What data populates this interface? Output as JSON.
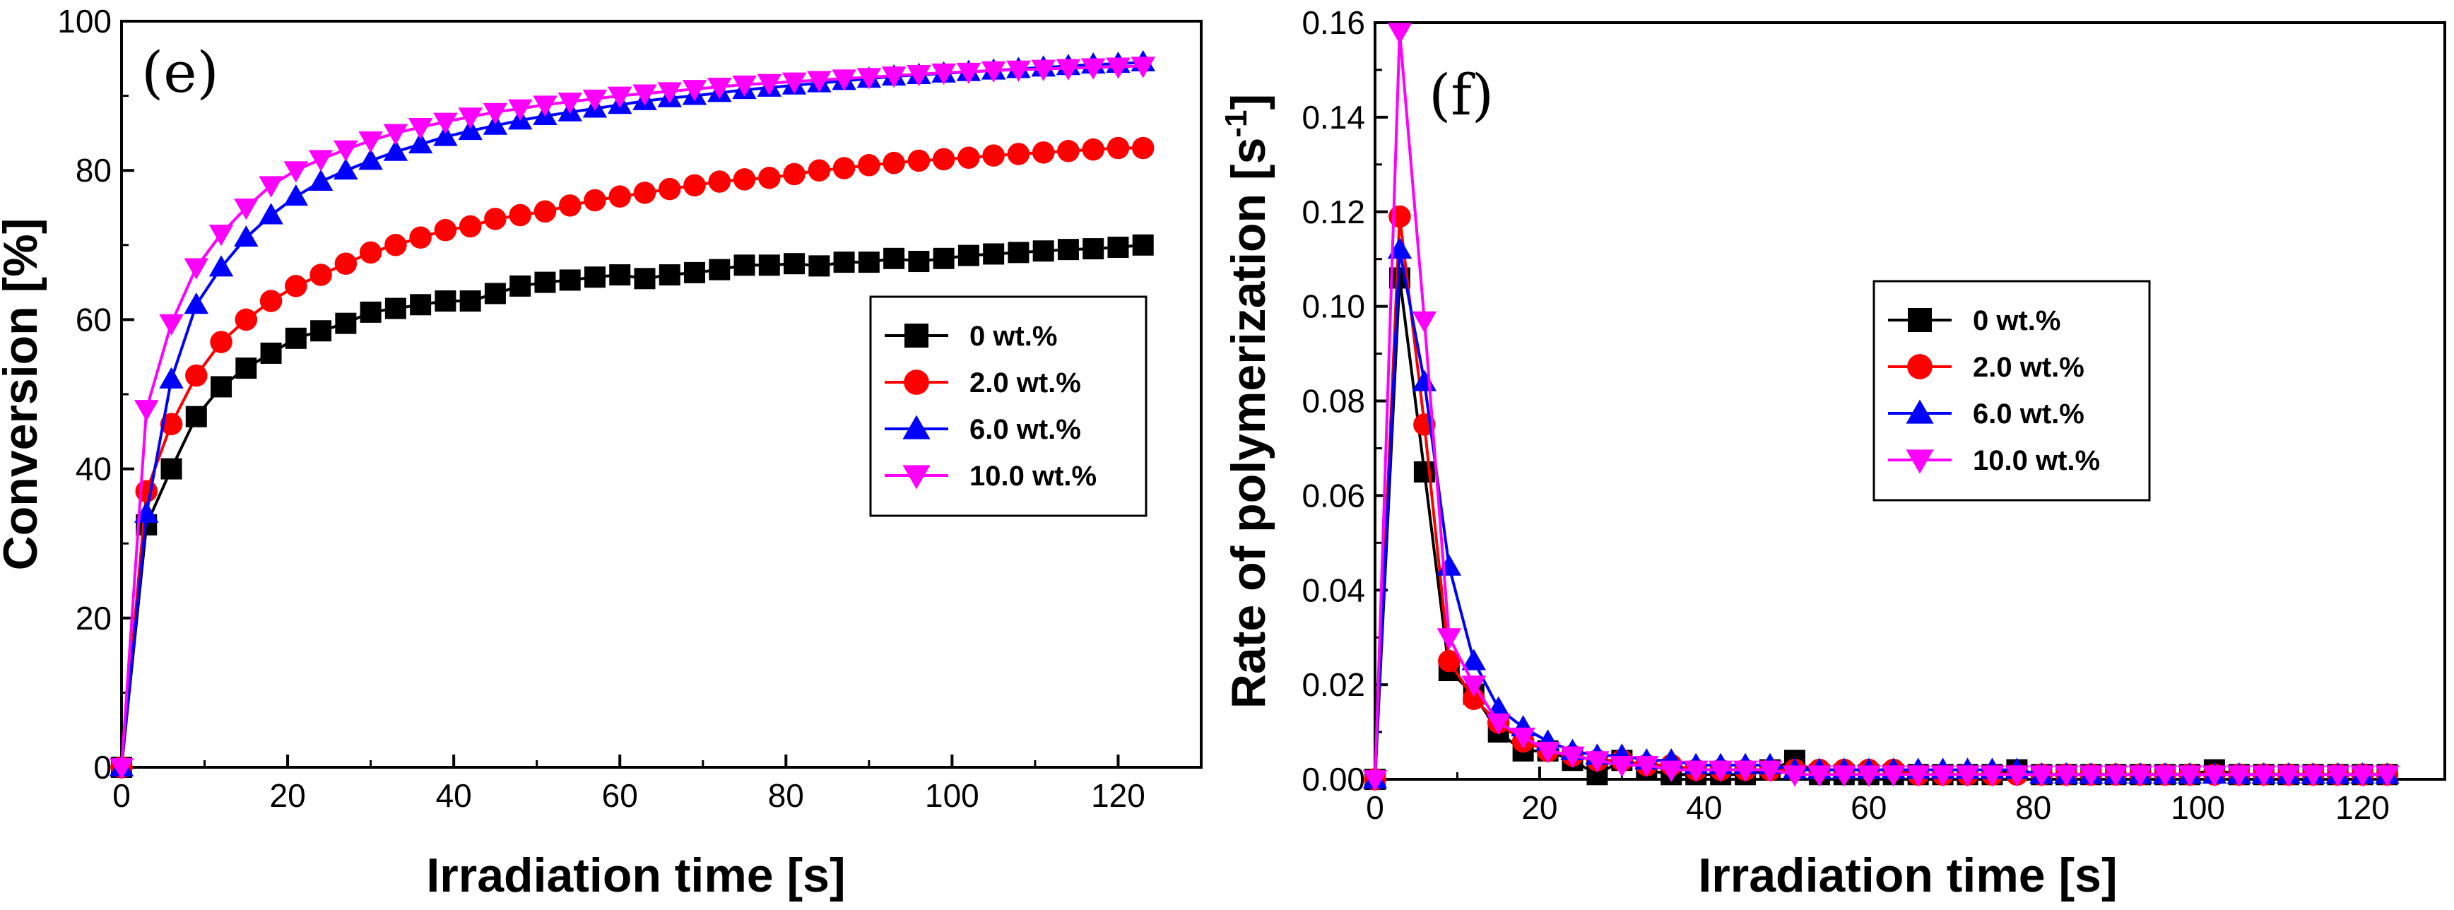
{
  "chart_data": [
    {
      "type": "line",
      "panel_label": "(e)",
      "xlabel": "Irradiation time  [s]",
      "ylabel": "Conversion  [%]",
      "xlim": [
        0,
        130
      ],
      "ylim": [
        0,
        100
      ],
      "xticks": [
        0,
        20,
        40,
        60,
        80,
        100,
        120
      ],
      "yticks": [
        0,
        20,
        40,
        60,
        80,
        100
      ],
      "xtick_labels": [
        "0",
        "20",
        "40",
        "60",
        "80",
        "100",
        "120"
      ],
      "ytick_labels": [
        "0",
        "20",
        "40",
        "60",
        "80",
        "100"
      ],
      "legend_position": "middle-right",
      "x": [
        0,
        3,
        6,
        9,
        12,
        15,
        18,
        21,
        24,
        27,
        30,
        33,
        36,
        39,
        42,
        45,
        48,
        51,
        54,
        57,
        60,
        63,
        66,
        69,
        72,
        75,
        78,
        81,
        84,
        87,
        90,
        93,
        96,
        99,
        102,
        105,
        108,
        111,
        114,
        117,
        120,
        123
      ],
      "series": [
        {
          "name": "0 wt.%",
          "color": "#000000",
          "marker": "square",
          "values": [
            0,
            32.5,
            40,
            47,
            51,
            53.5,
            55.5,
            57.5,
            58.5,
            59.5,
            61,
            61.5,
            62,
            62.5,
            62.5,
            63.5,
            64.5,
            65,
            65.3,
            65.7,
            66,
            65.5,
            66,
            66.3,
            66.7,
            67.3,
            67.3,
            67.5,
            67.2,
            67.7,
            67.7,
            68.2,
            67.8,
            68.2,
            68.6,
            68.8,
            69,
            69.2,
            69.4,
            69.5,
            69.7,
            70
          ]
        },
        {
          "name": "2.0 wt.%",
          "color": "#ff0000",
          "marker": "circle",
          "values": [
            0,
            37,
            46,
            52.5,
            57,
            60,
            62.5,
            64.5,
            66,
            67.5,
            69,
            70,
            71,
            72,
            72.5,
            73.5,
            74,
            74.5,
            75.3,
            76,
            76.5,
            77,
            77.5,
            78,
            78.5,
            78.8,
            79,
            79.5,
            80,
            80.3,
            80.7,
            81,
            81.3,
            81.5,
            81.7,
            82,
            82.2,
            82.4,
            82.6,
            82.8,
            83,
            83
          ]
        },
        {
          "name": "6.0 wt.%",
          "color": "#0000ff",
          "marker": "triangle-up",
          "values": [
            0,
            34,
            52,
            62,
            67,
            71,
            74,
            76.5,
            78.5,
            80,
            81.3,
            82.5,
            83.5,
            84.5,
            85.3,
            86,
            86.7,
            87.3,
            87.8,
            88.3,
            88.8,
            89.3,
            89.7,
            90,
            90.4,
            90.8,
            91.1,
            91.4,
            91.7,
            92,
            92.3,
            92.6,
            92.8,
            93,
            93.2,
            93.4,
            93.6,
            93.8,
            94,
            94.2,
            94.3,
            94.5
          ]
        },
        {
          "name": "10.0 wt.%",
          "color": "#ff00ff",
          "marker": "triangle-down",
          "values": [
            0,
            48,
            59.5,
            67,
            71.5,
            75,
            78,
            80,
            81.5,
            82.8,
            84,
            85,
            85.8,
            86.5,
            87.2,
            87.8,
            88.3,
            88.8,
            89.2,
            89.6,
            90,
            90.3,
            90.6,
            90.9,
            91.2,
            91.5,
            91.7,
            91.9,
            92.1,
            92.3,
            92.5,
            92.7,
            92.9,
            93.1,
            93.2,
            93.4,
            93.5,
            93.6,
            93.7,
            93.8,
            93.9,
            94
          ]
        }
      ]
    },
    {
      "type": "line",
      "panel_label": "(f)",
      "xlabel": "Irradiation time  [s]",
      "ylabel": "Rate of polymerization  [s",
      "ylabel_sup": "-1",
      "ylabel_end": "]",
      "xlim": [
        0,
        130
      ],
      "ylim": [
        0,
        0.16
      ],
      "xticks": [
        0,
        20,
        40,
        60,
        80,
        100,
        120
      ],
      "yticks": [
        0,
        0.02,
        0.04,
        0.06,
        0.08,
        0.1,
        0.12,
        0.14,
        0.16
      ],
      "xtick_labels": [
        "0",
        "20",
        "40",
        "60",
        "80",
        "100",
        "120"
      ],
      "ytick_labels": [
        "0.00",
        "0.02",
        "0.04",
        "0.06",
        "0.08",
        "0.10",
        "0.12",
        "0.14",
        "0.16"
      ],
      "legend_position": "center",
      "x": [
        0,
        3,
        6,
        9,
        12,
        15,
        18,
        21,
        24,
        27,
        30,
        33,
        36,
        39,
        42,
        45,
        48,
        51,
        54,
        57,
        60,
        63,
        66,
        69,
        72,
        75,
        78,
        81,
        84,
        87,
        90,
        93,
        96,
        99,
        102,
        105,
        108,
        111,
        114,
        117,
        120,
        123
      ],
      "series": [
        {
          "name": "0 wt.%",
          "color": "#000000",
          "marker": "square",
          "values": [
            0,
            0.106,
            0.065,
            0.023,
            0.018,
            0.01,
            0.006,
            0.006,
            0.004,
            0.001,
            0.004,
            0.002,
            0.001,
            0.001,
            0.001,
            0.001,
            0.002,
            0.004,
            0.001,
            0.001,
            0.001,
            0.001,
            0.001,
            0.001,
            0.001,
            0.001,
            0.002,
            0.001,
            0.001,
            0.001,
            0.001,
            0.001,
            0.001,
            0.001,
            0.002,
            0.001,
            0.001,
            0.001,
            0.001,
            0.001,
            0.001,
            0.001
          ]
        },
        {
          "name": "2.0 wt.%",
          "color": "#ff0000",
          "marker": "circle",
          "values": [
            0,
            0.119,
            0.075,
            0.025,
            0.017,
            0.012,
            0.008,
            0.006,
            0.005,
            0.004,
            0.004,
            0.003,
            0.003,
            0.002,
            0.002,
            0.002,
            0.002,
            0.002,
            0.002,
            0.002,
            0.002,
            0.002,
            0.001,
            0.001,
            0.001,
            0.001,
            0.001,
            0.001,
            0.001,
            0.001,
            0.001,
            0.001,
            0.001,
            0.001,
            0.001,
            0.001,
            0.001,
            0.001,
            0.001,
            0.001,
            0.001,
            0.001
          ]
        },
        {
          "name": "6.0 wt.%",
          "color": "#0000ff",
          "marker": "triangle-up",
          "values": [
            0,
            0.112,
            0.084,
            0.045,
            0.025,
            0.015,
            0.011,
            0.008,
            0.006,
            0.005,
            0.005,
            0.004,
            0.004,
            0.003,
            0.003,
            0.003,
            0.003,
            0.002,
            0.002,
            0.002,
            0.002,
            0.002,
            0.002,
            0.002,
            0.002,
            0.002,
            0.002,
            0.001,
            0.001,
            0.001,
            0.001,
            0.001,
            0.001,
            0.001,
            0.001,
            0.001,
            0.001,
            0.001,
            0.001,
            0.001,
            0.001,
            0.001
          ]
        },
        {
          "name": "10.0 wt.%",
          "color": "#ff00ff",
          "marker": "triangle-down",
          "values": [
            0,
            0.158,
            0.097,
            0.03,
            0.02,
            0.012,
            0.009,
            0.006,
            0.005,
            0.004,
            0.003,
            0.003,
            0.002,
            0.002,
            0.002,
            0.002,
            0.002,
            0.001,
            0.001,
            0.001,
            0.001,
            0.001,
            0.001,
            0.001,
            0.001,
            0.001,
            0.001,
            0.001,
            0.001,
            0.001,
            0.001,
            0.001,
            0.001,
            0.001,
            0.001,
            0.001,
            0.001,
            0.001,
            0.001,
            0.001,
            0.001,
            0.001
          ]
        }
      ]
    }
  ]
}
